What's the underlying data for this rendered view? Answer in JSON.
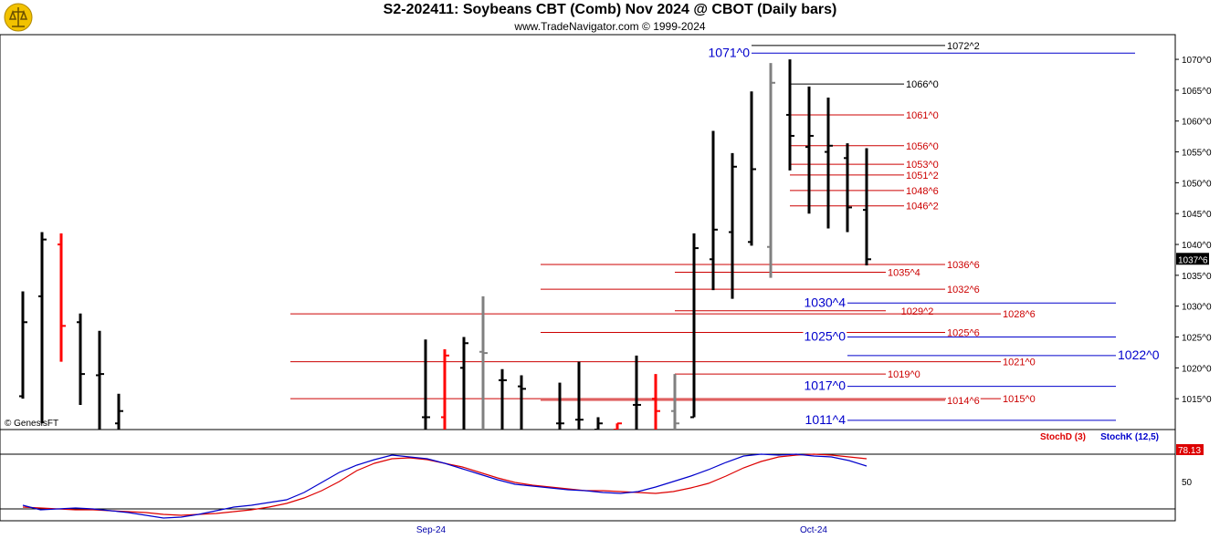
{
  "header": {
    "title": "S2-202411:  Soybeans CBT (Comb) Nov 2024 @ CBOT  (Daily bars)",
    "subtitle": "www.TradeNavigator.com © 1999-2024"
  },
  "watermark": "© GenesisFT",
  "colors": {
    "up_bar": "#000000",
    "down_bar": "#ff0000",
    "neutral_bar": "#808080",
    "red_level": "#cc0000",
    "blue_level": "#0000cc",
    "black_level": "#000000",
    "stochd": "#dd0000",
    "stochk": "#0000cc"
  },
  "chart_data": [
    {
      "type": "ohlc",
      "price_format": "cents^eighths",
      "ylim": [
        1010,
        1074
      ],
      "y_ticks": [
        "1015^0",
        "1020^0",
        "1025^0",
        "1030^0",
        "1035^0",
        "1040^0",
        "1045^0",
        "1050^0",
        "1055^0",
        "1060^0",
        "1065^0",
        "1070^0"
      ],
      "x_labels": [
        "Sep-24",
        "Oct-24"
      ],
      "last_price_label": "1037^6",
      "bars": [
        {
          "h": 1032.4,
          "l": 1015.0,
          "o": 1015.4,
          "c": 1027.4,
          "color": "black"
        },
        {
          "h": 1042.0,
          "l": 1011.0,
          "o": 1031.6,
          "c": 1040.8,
          "color": "black"
        },
        {
          "h": 1041.8,
          "l": 1021.0,
          "o": 1040.0,
          "c": 1026.8,
          "color": "red"
        },
        {
          "h": 1028.8,
          "l": 1014.0,
          "o": 1027.4,
          "c": 1019.0,
          "color": "black"
        },
        {
          "h": 1026.0,
          "l": 1010.0,
          "o": 1018.8,
          "c": 1019.0,
          "color": "black"
        },
        {
          "h": 1015.8,
          "l": 1008.0,
          "o": 1011.0,
          "c": 1013.0,
          "color": "black"
        },
        {
          "h": 1024.6,
          "l": 1008.0,
          "o": 1012.0,
          "c": 1012.0,
          "color": "black"
        },
        {
          "h": 1023.0,
          "l": 1008.0,
          "o": 1012.0,
          "c": 1022.0,
          "color": "red"
        },
        {
          "h": 1025.0,
          "l": 1008.0,
          "o": 1020.0,
          "c": 1024.0,
          "color": "black"
        },
        {
          "h": 1031.6,
          "l": 1008.0,
          "o": 1022.6,
          "c": 1022.4,
          "color": "gray"
        },
        {
          "h": 1019.8,
          "l": 1008.0,
          "o": 1018.0,
          "c": 1018.0,
          "color": "black"
        },
        {
          "h": 1018.8,
          "l": 1008.0,
          "o": 1017.0,
          "c": 1016.6,
          "color": "black"
        },
        {
          "h": 1017.6,
          "l": 1010.0,
          "o": 1011.0,
          "c": 1011.0,
          "color": "black"
        },
        {
          "h": 1021.0,
          "l": 1008.0,
          "o": 1011.6,
          "c": 1011.6,
          "color": "black"
        },
        {
          "h": 1012.0,
          "l": 1008.0,
          "o": 1010.0,
          "c": 1011.0,
          "color": "black"
        },
        {
          "h": 1011.0,
          "l": 1008.0,
          "o": 1010.0,
          "c": 1011.0,
          "color": "red"
        },
        {
          "h": 1022.0,
          "l": 1008.0,
          "o": 1014.0,
          "c": 1014.0,
          "color": "black"
        },
        {
          "h": 1019.0,
          "l": 1008.0,
          "o": 1015.0,
          "c": 1013.0,
          "color": "red"
        },
        {
          "h": 1019.0,
          "l": 1010.0,
          "o": 1013.0,
          "c": 1011.0,
          "color": "gray"
        },
        {
          "h": 1041.8,
          "l": 1012.0,
          "o": 1012.0,
          "c": 1039.4,
          "color": "black"
        },
        {
          "h": 1058.4,
          "l": 1032.6,
          "o": 1037.6,
          "c": 1042.4,
          "color": "black"
        },
        {
          "h": 1054.8,
          "l": 1031.2,
          "o": 1042.0,
          "c": 1052.6,
          "color": "black"
        },
        {
          "h": 1064.8,
          "l": 1039.8,
          "o": 1040.4,
          "c": 1052.2,
          "color": "black"
        },
        {
          "h": 1069.4,
          "l": 1034.6,
          "o": 1039.6,
          "c": 1066.2,
          "color": "gray"
        },
        {
          "h": 1070.0,
          "l": 1052.0,
          "o": 1061.0,
          "c": 1057.6,
          "color": "black"
        },
        {
          "h": 1065.6,
          "l": 1045.0,
          "o": 1055.8,
          "c": 1057.6,
          "color": "black"
        },
        {
          "h": 1063.8,
          "l": 1042.6,
          "o": 1055.0,
          "c": 1056.0,
          "color": "black"
        },
        {
          "h": 1056.4,
          "l": 1042.0,
          "o": 1054.0,
          "c": 1046.0,
          "color": "black"
        },
        {
          "h": 1055.6,
          "l": 1036.6,
          "o": 1045.6,
          "c": 1037.6,
          "color": "black"
        }
      ],
      "levels": [
        {
          "label": "1072^2",
          "value": 1072.25,
          "color": "black",
          "label_side": "right"
        },
        {
          "label": "1071^0",
          "value": 1071.0,
          "color": "blue",
          "label_side": "left"
        },
        {
          "label": "1066^0",
          "value": 1066.0,
          "color": "black",
          "label_side": "right"
        },
        {
          "label": "1061^0",
          "value": 1061.0,
          "color": "red",
          "label_side": "right"
        },
        {
          "label": "1056^0",
          "value": 1056.0,
          "color": "red",
          "label_side": "right"
        },
        {
          "label": "1053^0",
          "value": 1053.0,
          "color": "red",
          "label_side": "right"
        },
        {
          "label": "1051^2",
          "value": 1051.25,
          "color": "red",
          "label_side": "right"
        },
        {
          "label": "1048^6",
          "value": 1048.75,
          "color": "red",
          "label_side": "right"
        },
        {
          "label": "1046^2",
          "value": 1046.25,
          "color": "red",
          "label_side": "right"
        },
        {
          "label": "1036^6",
          "value": 1036.75,
          "color": "red",
          "label_side": "right"
        },
        {
          "label": "1035^4",
          "value": 1035.5,
          "color": "red",
          "label_side": "right"
        },
        {
          "label": "1032^6",
          "value": 1032.75,
          "color": "red",
          "label_side": "right"
        },
        {
          "label": "1030^4",
          "value": 1030.5,
          "color": "blue",
          "label_side": "left"
        },
        {
          "label": "1029^2",
          "value": 1029.25,
          "color": "red",
          "label_side": "mid"
        },
        {
          "label": "1028^6",
          "value": 1028.75,
          "color": "red",
          "label_side": "right"
        },
        {
          "label": "1025^6",
          "value": 1025.75,
          "color": "red",
          "label_side": "right"
        },
        {
          "label": "1025^0",
          "value": 1025.0,
          "color": "blue",
          "label_side": "left"
        },
        {
          "label": "1022^0",
          "value": 1022.0,
          "color": "blue",
          "label_side": "right"
        },
        {
          "label": "1021^0",
          "value": 1021.0,
          "color": "red",
          "label_side": "right"
        },
        {
          "label": "1019^0",
          "value": 1019.0,
          "color": "red",
          "label_side": "right"
        },
        {
          "label": "1017^0",
          "value": 1017.0,
          "color": "blue",
          "label_side": "left"
        },
        {
          "label": "1015^0",
          "value": 1015.0,
          "color": "red",
          "label_side": "right"
        },
        {
          "label": "1014^6",
          "value": 1014.75,
          "color": "red",
          "label_side": "right"
        },
        {
          "label": "1011^4",
          "value": 1011.5,
          "color": "blue",
          "label_side": "left"
        }
      ]
    },
    {
      "type": "line",
      "legend": [
        "StochD (3)",
        "StochK (12,5)"
      ],
      "y_ticks": [
        "50"
      ],
      "last_value_label": "78.13",
      "ylim": [
        0,
        100
      ],
      "series": [
        {
          "name": "StochD (3)",
          "color": "red",
          "values": [
            22,
            21,
            20,
            19,
            19,
            18,
            17,
            16,
            14,
            13,
            14,
            15,
            17,
            19,
            22,
            26,
            32,
            40,
            50,
            62,
            70,
            75,
            76,
            74,
            70,
            66,
            60,
            54,
            49,
            46,
            44,
            42,
            40,
            40,
            39,
            38,
            37,
            39,
            43,
            48,
            56,
            65,
            72,
            77,
            79,
            80,
            79,
            77,
            75
          ]
        },
        {
          "name": "StochK (12,5)",
          "color": "blue",
          "values": [
            24,
            19,
            20,
            21,
            20,
            18,
            16,
            13,
            10,
            11,
            14,
            18,
            22,
            24,
            27,
            30,
            38,
            49,
            60,
            68,
            74,
            79,
            77,
            75,
            70,
            64,
            58,
            52,
            47,
            45,
            43,
            41,
            40,
            38,
            37,
            39,
            44,
            50,
            56,
            63,
            71,
            78,
            80,
            79,
            80,
            78,
            77,
            73,
            67
          ]
        }
      ]
    }
  ]
}
